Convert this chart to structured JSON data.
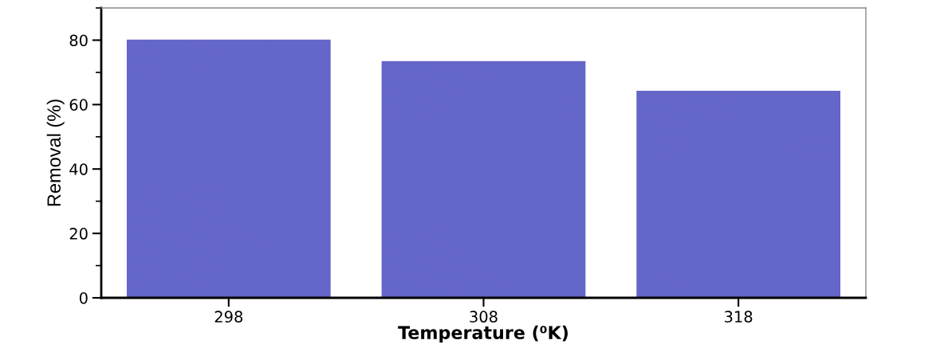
{
  "chart_data": {
    "type": "bar",
    "xlabel": "Temperature (⁰K)",
    "ylabel": "Removal (%)",
    "categories": [
      "298",
      "308",
      "318"
    ],
    "values": [
      80.2,
      73.5,
      64.3
    ],
    "color": "#6466c8",
    "ylim": [
      0,
      90
    ],
    "yticks": [
      0,
      20,
      40,
      60,
      80
    ],
    "grid": false
  }
}
